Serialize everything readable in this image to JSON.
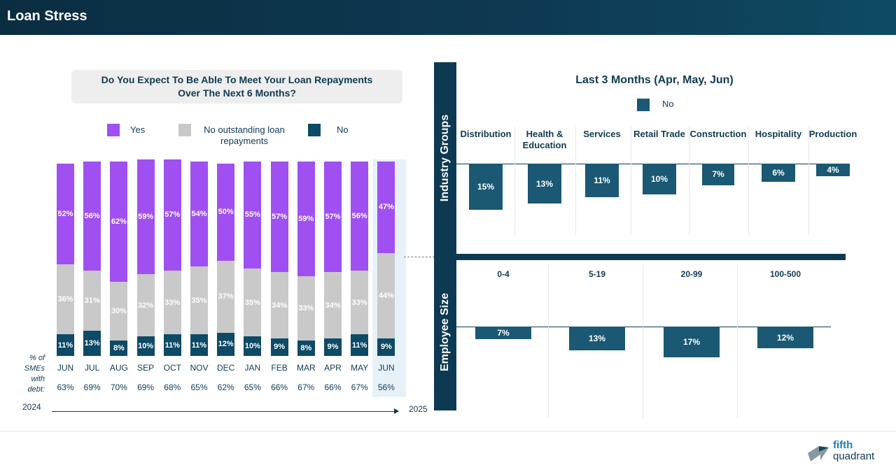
{
  "header": {
    "title": "Loan Stress"
  },
  "left_chart": {
    "question_line1": "Do You Expect To Be Able To Meet Your Loan Repayments",
    "question_line2": "Over The Next 6 Months?",
    "legend": {
      "yes": "Yes",
      "nout_line1": "No outstanding loan",
      "nout_line2": "repayments",
      "no": "No"
    },
    "debt_label": [
      "% of",
      "SMEs",
      "with",
      "debt:"
    ],
    "year_start": "2024",
    "year_end": "2025"
  },
  "right_panel": {
    "title": "Last 3 Months (Apr, May, Jun)",
    "legend_no": "No",
    "industry_label": "Industry Groups",
    "employee_label": "Employee Size"
  },
  "colors": {
    "yes": "#a050f0",
    "nout": "#c9c9c9",
    "no": "#0d4a66",
    "no_right": "#1a5873",
    "header": "#0d3a52"
  },
  "chart_data": [
    {
      "type": "bar",
      "stacked": true,
      "title": "Do You Expect To Be Able To Meet Your Loan Repayments Over The Next 6 Months?",
      "categories": [
        "JUN",
        "JUL",
        "AUG",
        "SEP",
        "OCT",
        "NOV",
        "DEC",
        "JAN",
        "FEB",
        "MAR",
        "APR",
        "MAY",
        "JUN"
      ],
      "series": [
        {
          "name": "No",
          "values": [
            11,
            13,
            8,
            10,
            11,
            11,
            12,
            10,
            9,
            8,
            9,
            11,
            9
          ]
        },
        {
          "name": "No outstanding loan repayments",
          "values": [
            36,
            31,
            30,
            32,
            33,
            35,
            37,
            35,
            34,
            33,
            34,
            33,
            44
          ]
        },
        {
          "name": "Yes",
          "values": [
            52,
            56,
            62,
            59,
            57,
            54,
            50,
            55,
            57,
            59,
            57,
            56,
            47
          ]
        }
      ],
      "debt_share": [
        "63%",
        "69%",
        "70%",
        "69%",
        "68%",
        "65%",
        "62%",
        "65%",
        "66%",
        "67%",
        "66%",
        "67%",
        "56%"
      ],
      "ylim": [
        0,
        100
      ]
    },
    {
      "type": "bar",
      "title": "Industry Groups",
      "categories": [
        "Distribution",
        "Health & Education",
        "Services",
        "Retail Trade",
        "Construction",
        "Hospitality",
        "Production"
      ],
      "series": [
        {
          "name": "No",
          "values": [
            15,
            13,
            11,
            10,
            7,
            6,
            4
          ]
        }
      ]
    },
    {
      "type": "bar",
      "title": "Employee Size",
      "categories": [
        "0-4",
        "5-19",
        "20-99",
        "100-500"
      ],
      "series": [
        {
          "name": "No",
          "values": [
            7,
            13,
            17,
            12
          ]
        }
      ]
    }
  ]
}
